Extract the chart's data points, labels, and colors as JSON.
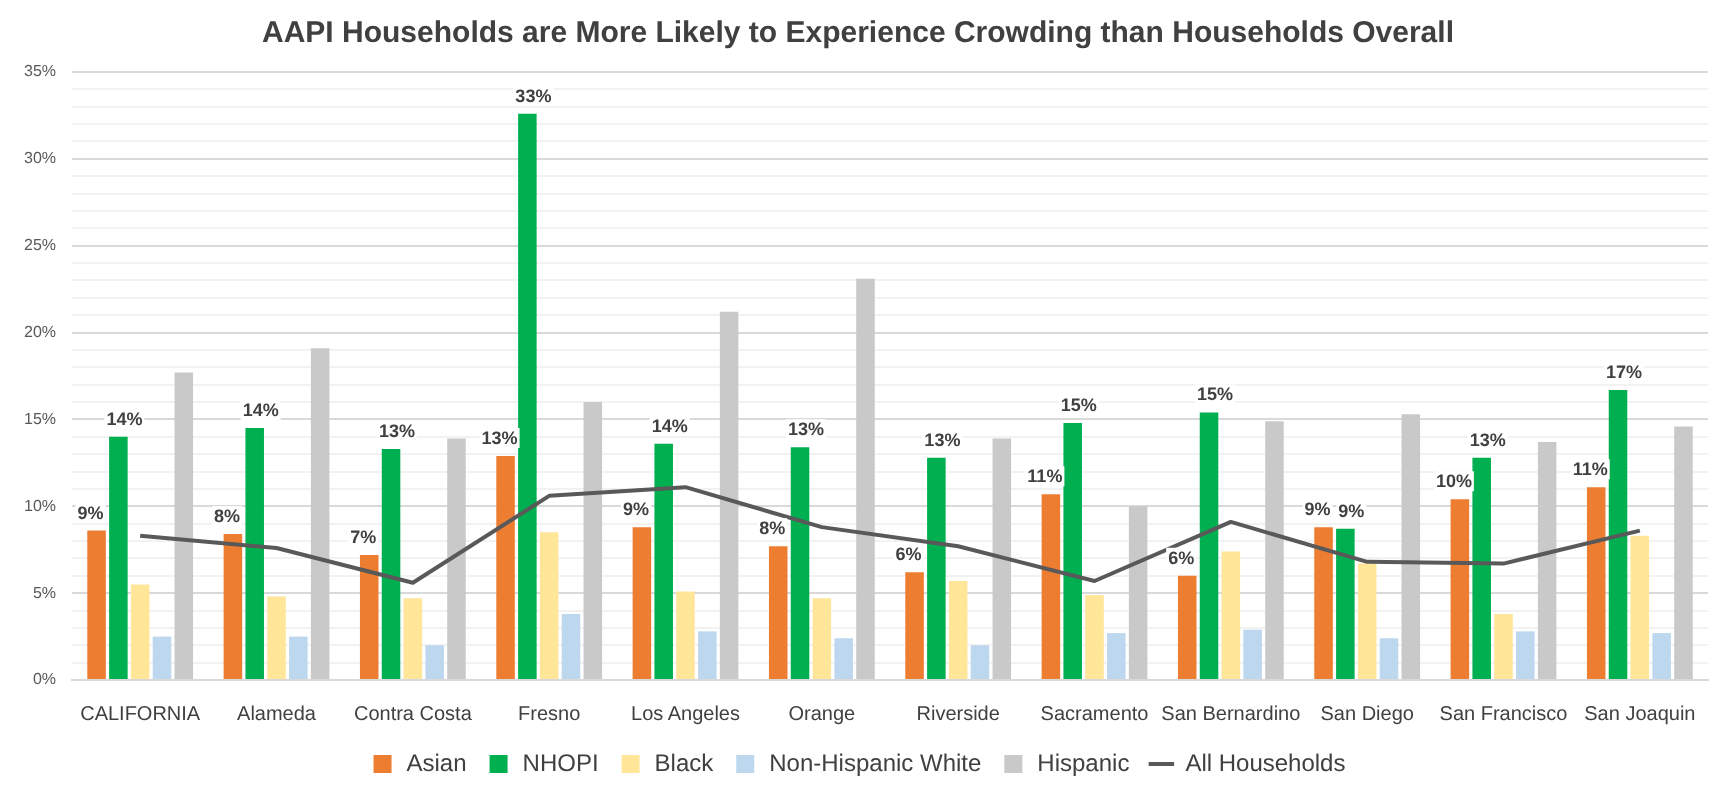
{
  "chart_data": {
    "type": "bar",
    "title": "AAPI Households are More Likely to Experience Crowding than Households Overall",
    "categories": [
      "CALIFORNIA",
      "Alameda",
      "Contra Costa",
      "Fresno",
      "Los Angeles",
      "Orange",
      "Riverside",
      "Sacramento",
      "San Bernardino",
      "San Diego",
      "San Francisco",
      "San Joaquin"
    ],
    "series": [
      {
        "name": "Asian",
        "color": "#ed7d31",
        "values": [
          8.6,
          8.4,
          7.2,
          12.9,
          8.8,
          7.7,
          6.2,
          10.7,
          6.0,
          8.8,
          10.4,
          11.1
        ],
        "value_labels": [
          "9%",
          "8%",
          "7%",
          "13%",
          "9%",
          "8%",
          "6%",
          "11%",
          "6%",
          "9%",
          "10%",
          "11%"
        ]
      },
      {
        "name": "NHOPI",
        "color": "#00b050",
        "values": [
          14.0,
          14.5,
          13.3,
          32.6,
          13.6,
          13.4,
          12.8,
          14.8,
          15.4,
          8.7,
          12.8,
          16.7
        ],
        "value_labels": [
          "14%",
          "14%",
          "13%",
          "33%",
          "14%",
          "13%",
          "13%",
          "15%",
          "15%",
          "9%",
          "13%",
          "17%"
        ]
      },
      {
        "name": "Black",
        "color": "#ffe699",
        "values": [
          5.5,
          4.8,
          4.7,
          8.5,
          5.1,
          4.7,
          5.7,
          4.9,
          7.4,
          6.7,
          3.8,
          8.3
        ]
      },
      {
        "name": "Non-Hispanic White",
        "color": "#bdd7ee",
        "values": [
          2.5,
          2.5,
          2.0,
          3.8,
          2.8,
          2.4,
          2.0,
          2.7,
          2.9,
          2.4,
          2.8,
          2.7
        ]
      },
      {
        "name": "Hispanic",
        "color": "#c9c9c9",
        "values": [
          17.7,
          19.1,
          13.9,
          16.0,
          21.2,
          23.1,
          13.9,
          10.0,
          14.9,
          15.3,
          13.7,
          14.6
        ]
      },
      {
        "name": "All Households",
        "color": "#595959",
        "type": "line",
        "marker": "none",
        "values": [
          8.3,
          7.6,
          5.6,
          10.6,
          11.1,
          8.8,
          7.7,
          5.7,
          9.1,
          6.8,
          6.7,
          8.6
        ]
      }
    ],
    "ylim": [
      0,
      35
    ],
    "yticks": [
      {
        "value": 0,
        "label": "0%"
      },
      {
        "value": 1,
        "label": null
      },
      {
        "value": 2,
        "label": null
      },
      {
        "value": 3,
        "label": null
      },
      {
        "value": 4,
        "label": null
      },
      {
        "value": 5,
        "label": "5%"
      },
      {
        "value": 6,
        "label": null
      },
      {
        "value": 7,
        "label": null
      },
      {
        "value": 8,
        "label": null
      },
      {
        "value": 9,
        "label": null
      },
      {
        "value": 10,
        "label": "10%"
      },
      {
        "value": 11,
        "label": null
      },
      {
        "value": 12,
        "label": null
      },
      {
        "value": 13,
        "label": null
      },
      {
        "value": 14,
        "label": null
      },
      {
        "value": 15,
        "label": "15%"
      },
      {
        "value": 16,
        "label": null
      },
      {
        "value": 17,
        "label": null
      },
      {
        "value": 18,
        "label": null
      },
      {
        "value": 19,
        "label": null
      },
      {
        "value": 20,
        "label": "20%"
      },
      {
        "value": 21,
        "label": null
      },
      {
        "value": 22,
        "label": null
      },
      {
        "value": 23,
        "label": null
      },
      {
        "value": 24,
        "label": null
      },
      {
        "value": 25,
        "label": "25%"
      },
      {
        "value": 26,
        "label": null
      },
      {
        "value": 27,
        "label": null
      },
      {
        "value": 28,
        "label": null
      },
      {
        "value": 29,
        "label": null
      },
      {
        "value": 30,
        "label": "30%"
      },
      {
        "value": 31,
        "label": null
      },
      {
        "value": 32,
        "label": null
      },
      {
        "value": 33,
        "label": null
      },
      {
        "value": 34,
        "label": null
      },
      {
        "value": 35,
        "label": "35%"
      }
    ],
    "grid": "y",
    "legend": "bottom"
  }
}
